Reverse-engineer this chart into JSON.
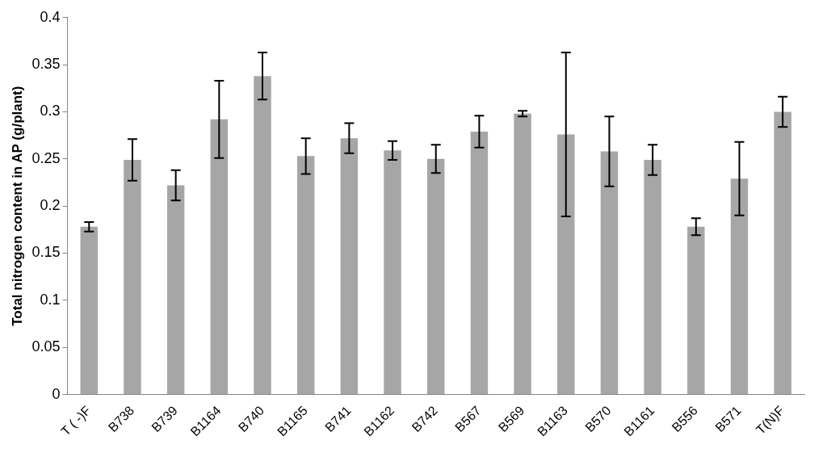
{
  "chart_data": {
    "type": "bar",
    "ylabel": "Total nitrogen content in AP (g/plant)",
    "categories": [
      "T ( -)F",
      "B738",
      "B739",
      "B1164",
      "B740",
      "B1165",
      "B741",
      "B1162",
      "B742",
      "B567",
      "B569",
      "B1163",
      "B570",
      "B1161",
      "B556",
      "B571",
      "T(N)F"
    ],
    "values": [
      0.178,
      0.249,
      0.222,
      0.292,
      0.338,
      0.253,
      0.272,
      0.259,
      0.25,
      0.279,
      0.298,
      0.276,
      0.258,
      0.249,
      0.178,
      0.229,
      0.3
    ],
    "errors": [
      0.005,
      0.022,
      0.016,
      0.041,
      0.025,
      0.019,
      0.016,
      0.01,
      0.015,
      0.017,
      0.003,
      0.087,
      0.037,
      0.016,
      0.009,
      0.039,
      0.016
    ],
    "color": "#a6a6a6",
    "ylim": [
      0,
      0.4
    ],
    "yticks": [
      0,
      0.05,
      0.1,
      0.15,
      0.2,
      0.25,
      0.3,
      0.35,
      0.4
    ],
    "grid": false,
    "legend": false
  }
}
